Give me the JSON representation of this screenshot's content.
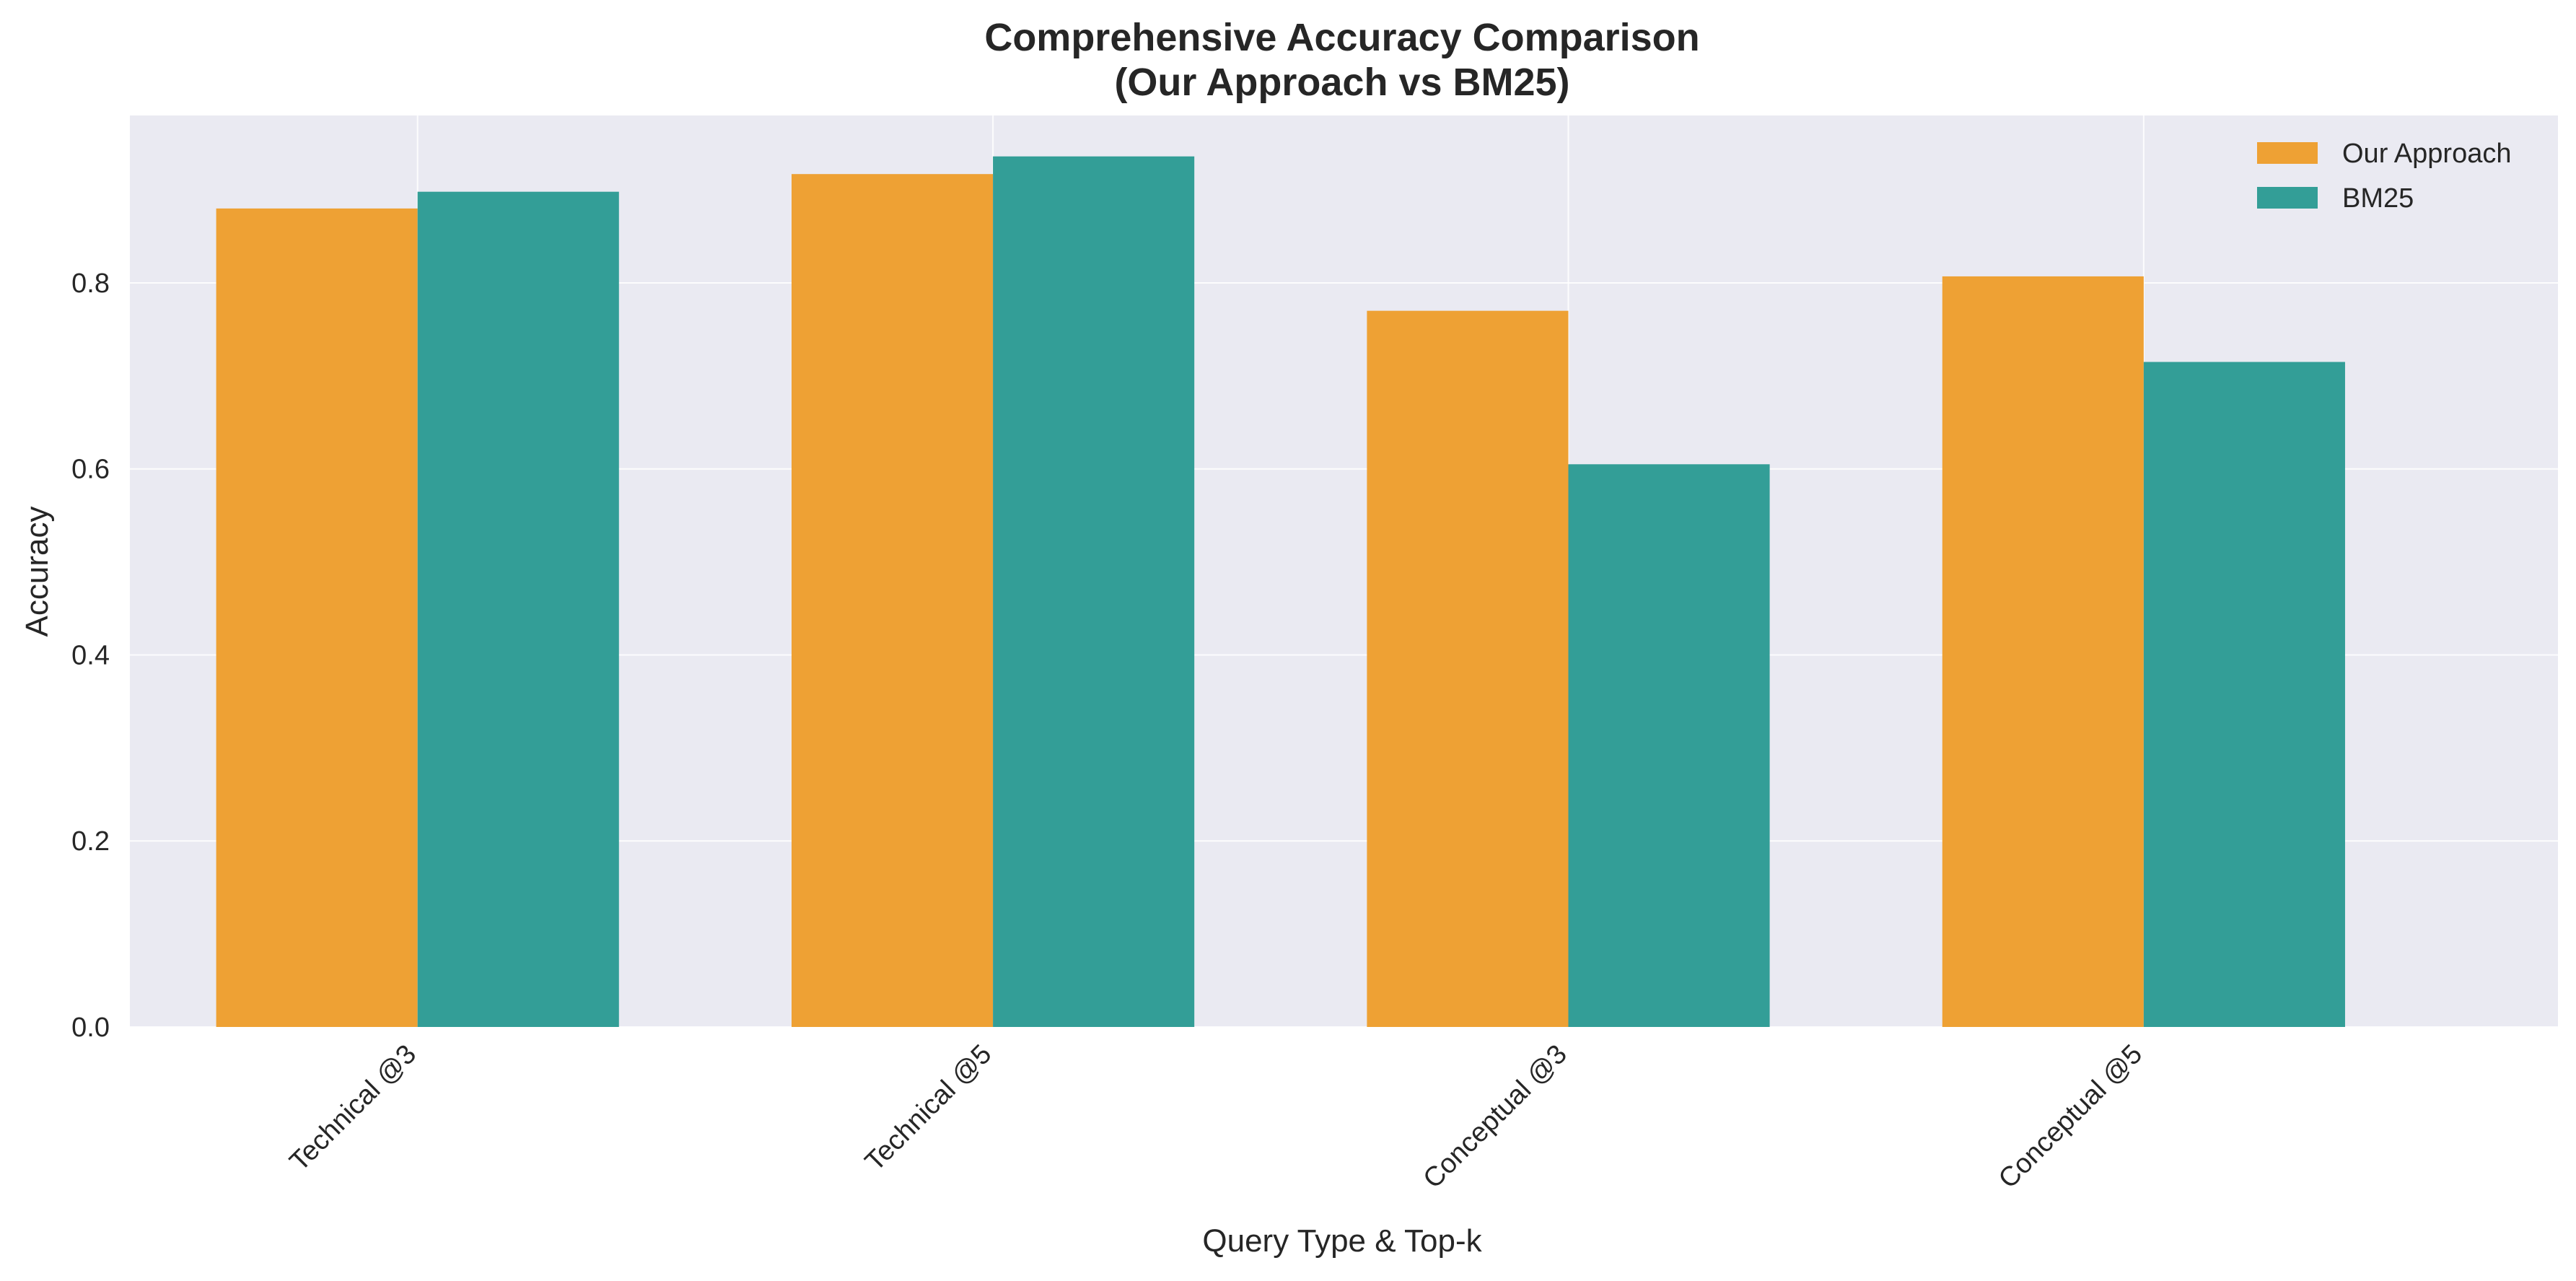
{
  "chart_data": {
    "type": "bar",
    "title_lines": [
      "Comprehensive Accuracy Comparison",
      "(Our Approach vs BM25)"
    ],
    "xlabel": "Query Type & Top-k",
    "ylabel": "Accuracy",
    "categories": [
      "Technical @3",
      "Technical @5",
      "Conceptual @3",
      "Conceptual @5"
    ],
    "series": [
      {
        "name": "Our Approach",
        "color": "#EEA134",
        "values": [
          0.88,
          0.917,
          0.77,
          0.807
        ]
      },
      {
        "name": "BM25",
        "color": "#339E97",
        "values": [
          0.898,
          0.936,
          0.605,
          0.715
        ]
      }
    ],
    "ylim": [
      0,
      0.98
    ],
    "yticks": [
      "0.0",
      "0.2",
      "0.4",
      "0.6",
      "0.8"
    ],
    "grid": true,
    "legend_position": "top-right",
    "background": "#EAEAF2"
  }
}
